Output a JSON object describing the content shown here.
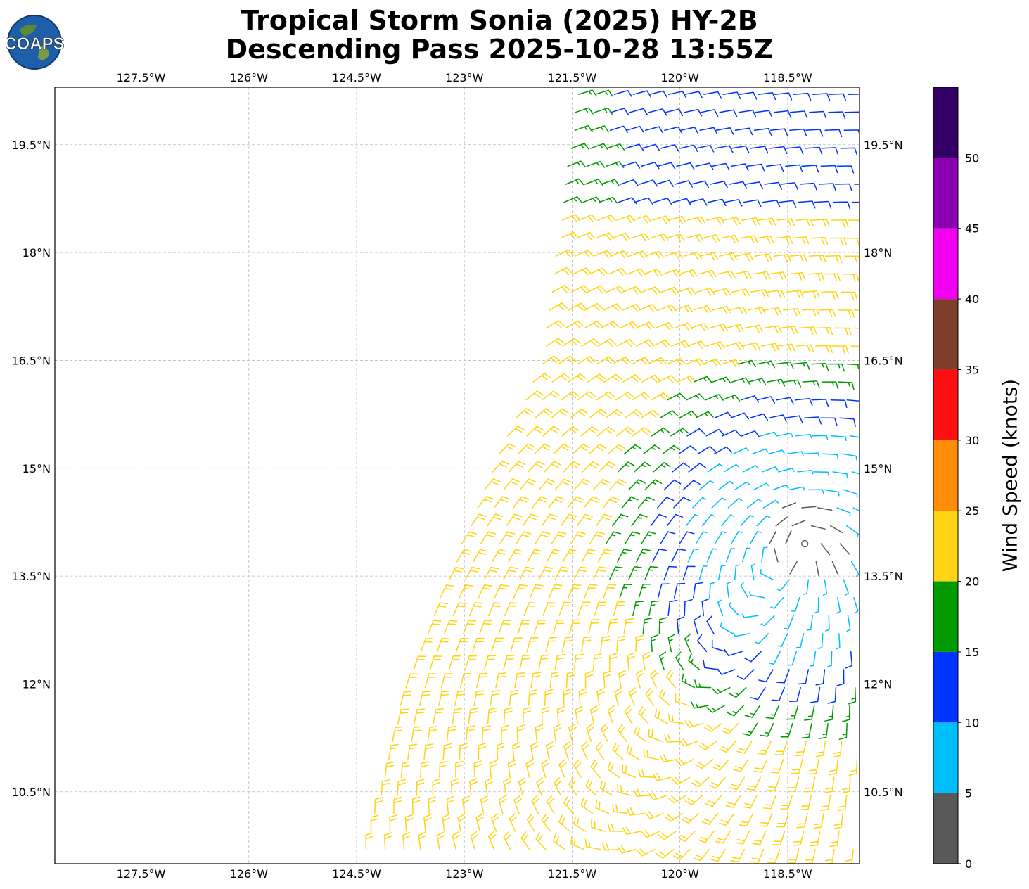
{
  "title": {
    "line1": "Tropical Storm Sonia (2025) HY-2B",
    "line2": "Descending Pass 2025-10-28 13:55Z"
  },
  "logo": {
    "text": "COAPS"
  },
  "chart_data": {
    "type": "wind-barb map",
    "title": "Tropical Storm Sonia (2025) HY-2B Descending Pass 2025-10-28 13:55Z",
    "xlim": [
      -128.7,
      -117.5
    ],
    "ylim": [
      9.5,
      20.3
    ],
    "x_ticks": [
      -127.5,
      -126,
      -124.5,
      -123,
      -121.5,
      -120,
      -118.5
    ],
    "x_tick_labels": [
      "127.5°W",
      "126°W",
      "124.5°W",
      "123°W",
      "121.5°W",
      "120°W",
      "118.5°W"
    ],
    "y_ticks": [
      19.5,
      18,
      16.5,
      15,
      13.5,
      12,
      10.5
    ],
    "y_tick_labels": [
      "19.5°N",
      "18°N",
      "16.5°N",
      "15°N",
      "13.5°N",
      "12°N",
      "10.5°N"
    ],
    "grid": true,
    "storm_center": [
      -118.3,
      14.0
    ],
    "swath_west_edge": [
      [
        -121.4,
        20.3
      ],
      [
        -121.9,
        16.5
      ],
      [
        -122.6,
        15.0
      ],
      [
        -123.8,
        12.0
      ],
      [
        -124.4,
        9.5
      ]
    ],
    "colorbar": {
      "label": "Wind Speed (knots)",
      "range": [
        0,
        55
      ],
      "ticks": [
        0,
        5,
        10,
        15,
        20,
        25,
        30,
        35,
        40,
        45,
        50
      ],
      "bins": [
        {
          "min": 0,
          "max": 5,
          "color": "#595959"
        },
        {
          "min": 5,
          "max": 10,
          "color": "#00bfff"
        },
        {
          "min": 10,
          "max": 15,
          "color": "#0033ff"
        },
        {
          "min": 15,
          "max": 20,
          "color": "#009900"
        },
        {
          "min": 20,
          "max": 25,
          "color": "#ffd414"
        },
        {
          "min": 25,
          "max": 30,
          "color": "#ff8c0a"
        },
        {
          "min": 30,
          "max": 35,
          "color": "#ff0f0f"
        },
        {
          "min": 35,
          "max": 40,
          "color": "#7f3d2b"
        },
        {
          "min": 40,
          "max": 45,
          "color": "#f200f2"
        },
        {
          "min": 45,
          "max": 50,
          "color": "#8c00b3"
        },
        {
          "min": 50,
          "max": 55,
          "color": "#330066"
        }
      ]
    }
  }
}
